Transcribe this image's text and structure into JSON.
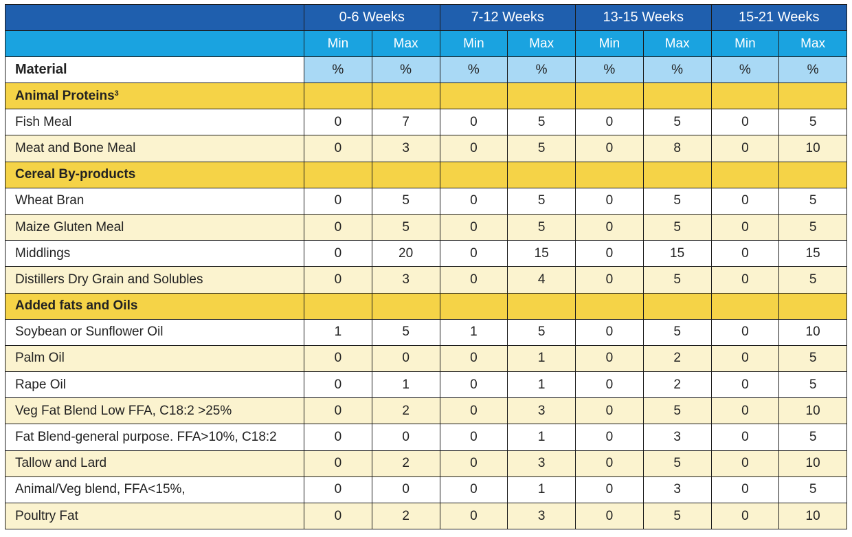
{
  "periods": [
    {
      "label": "0-6 Weeks"
    },
    {
      "label": "7-12 Weeks"
    },
    {
      "label": "13-15 Weeks"
    },
    {
      "label": "15-21 Weeks"
    }
  ],
  "min_label": "Min",
  "max_label": "Max",
  "unit_label": "%",
  "material_header": "Material",
  "sections": [
    {
      "title": "Animal Proteins",
      "footnote": "3",
      "rows": [
        {
          "name": "Fish Meal",
          "values": [
            "0",
            "7",
            "0",
            "5",
            "0",
            "5",
            "0",
            "5"
          ]
        },
        {
          "name": "Meat and Bone Meal",
          "values": [
            "0",
            "3",
            "0",
            "5",
            "0",
            "8",
            "0",
            "10"
          ]
        }
      ]
    },
    {
      "title": "Cereal By-products",
      "footnote": "",
      "rows": [
        {
          "name": "Wheat Bran",
          "values": [
            "0",
            "5",
            "0",
            "5",
            "0",
            "5",
            "0",
            "5"
          ]
        },
        {
          "name": "Maize Gluten Meal",
          "values": [
            "0",
            "5",
            "0",
            "5",
            "0",
            "5",
            "0",
            "5"
          ]
        },
        {
          "name": "Middlings",
          "values": [
            "0",
            "20",
            "0",
            "15",
            "0",
            "15",
            "0",
            "15"
          ]
        },
        {
          "name": "Distillers Dry Grain and Solubles",
          "values": [
            "0",
            "3",
            "0",
            "4",
            "0",
            "5",
            "0",
            "5"
          ]
        }
      ]
    },
    {
      "title": "Added fats and Oils",
      "footnote": "",
      "rows": [
        {
          "name": "Soybean or Sunflower Oil",
          "values": [
            "1",
            "5",
            "1",
            "5",
            "0",
            "5",
            "0",
            "10"
          ]
        },
        {
          "name": "Palm Oil",
          "values": [
            "0",
            "0",
            "0",
            "1",
            "0",
            "2",
            "0",
            "5"
          ]
        },
        {
          "name": "Rape Oil",
          "values": [
            "0",
            "1",
            "0",
            "1",
            "0",
            "2",
            "0",
            "5"
          ]
        },
        {
          "name": "Veg Fat Blend Low FFA, C18:2 >25%",
          "values": [
            "0",
            "2",
            "0",
            "3",
            "0",
            "5",
            "0",
            "10"
          ]
        },
        {
          "name": "Fat Blend-general purpose. FFA>10%, C18:2",
          "values": [
            "0",
            "0",
            "0",
            "1",
            "0",
            "3",
            "0",
            "5"
          ]
        },
        {
          "name": "Tallow and Lard",
          "values": [
            "0",
            "2",
            "0",
            "3",
            "0",
            "5",
            "0",
            "10"
          ]
        },
        {
          "name": "Animal/Veg blend, FFA<15%,",
          "values": [
            "0",
            "0",
            "0",
            "1",
            "0",
            "3",
            "0",
            "5"
          ]
        },
        {
          "name": "Poultry Fat",
          "values": [
            "0",
            "2",
            "0",
            "3",
            "0",
            "5",
            "0",
            "10"
          ]
        }
      ]
    }
  ]
}
